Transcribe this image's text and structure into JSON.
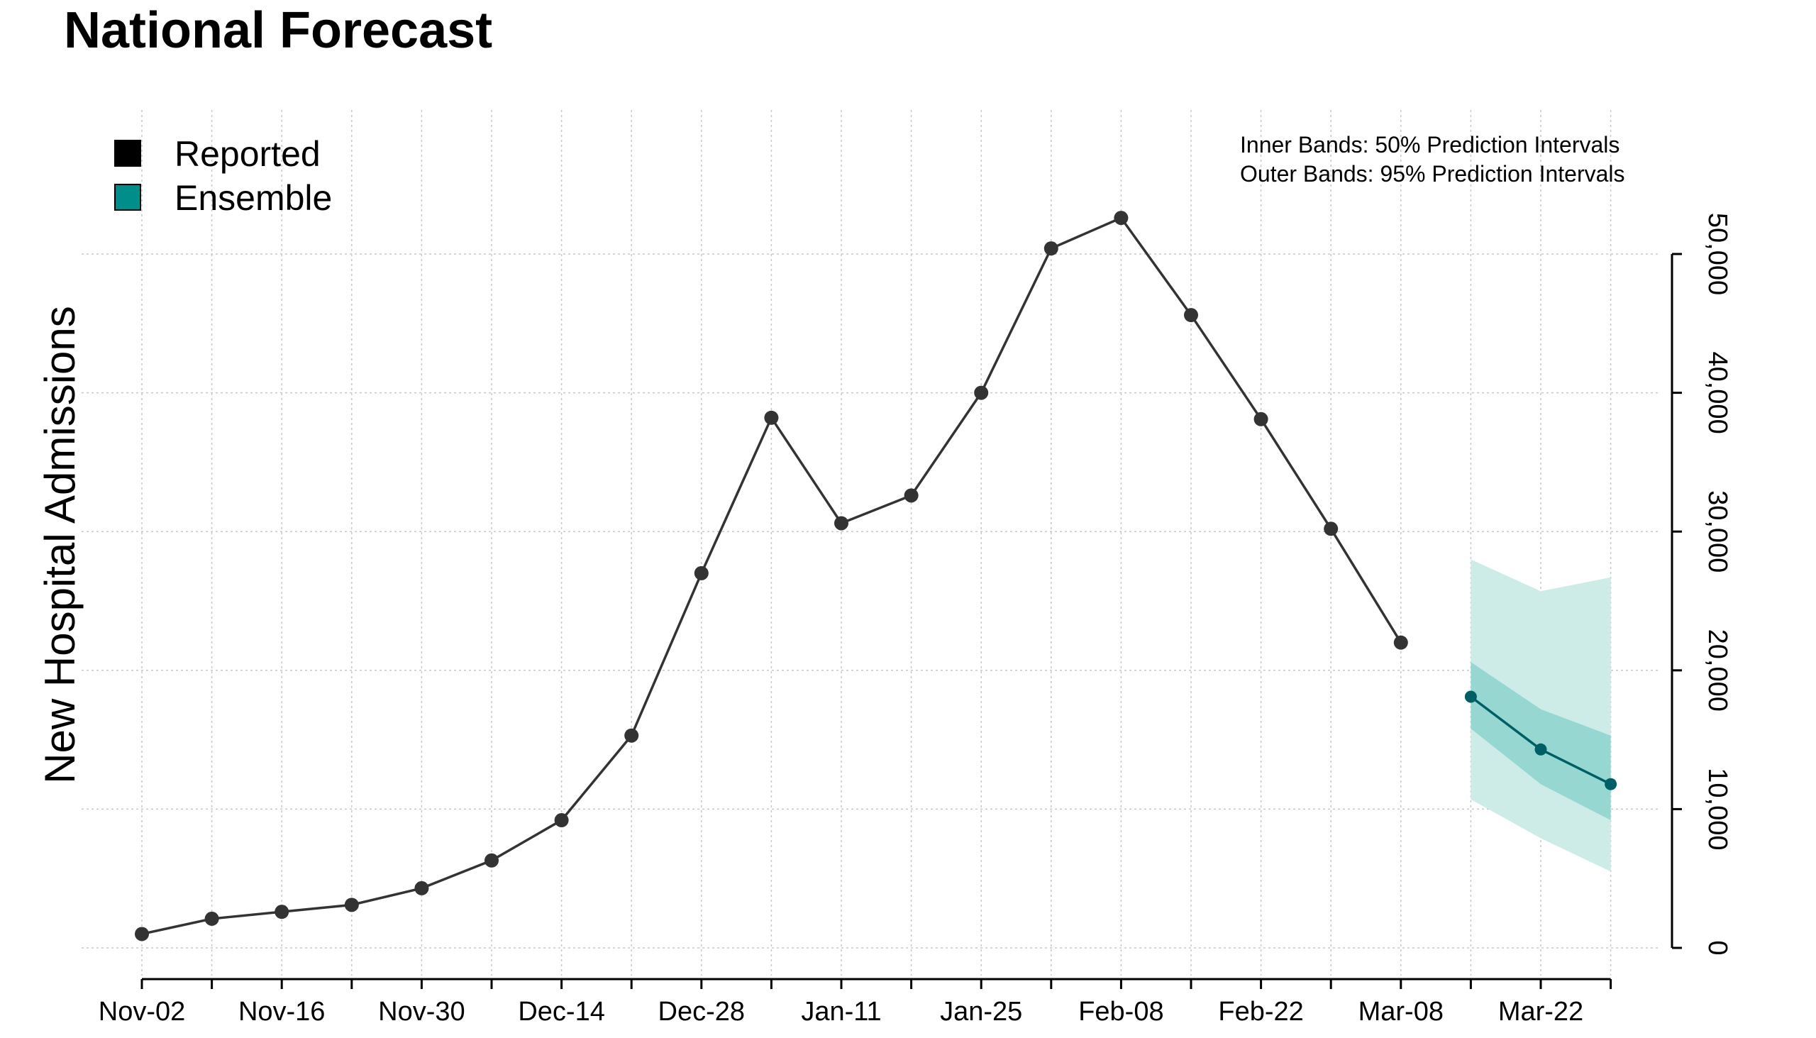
{
  "chart_data": {
    "type": "line",
    "title": "National Forecast",
    "ylabel": "New Hospital Admissions",
    "xlabel": "",
    "ylim": [
      -2000,
      56000
    ],
    "yticks": [
      0,
      10000,
      20000,
      30000,
      40000,
      50000
    ],
    "ytick_labels": [
      "0",
      "10,000",
      "20,000",
      "30,000",
      "40,000",
      "50,000"
    ],
    "grid": true,
    "legend_position": "top-left",
    "x_start": "Nov-02",
    "x": [
      "Nov-02",
      "Nov-09",
      "Nov-16",
      "Nov-23",
      "Nov-30",
      "Dec-07",
      "Dec-14",
      "Dec-21",
      "Dec-28",
      "Jan-04",
      "Jan-11",
      "Jan-18",
      "Jan-25",
      "Feb-01",
      "Feb-08",
      "Feb-15",
      "Feb-22",
      "Mar-01",
      "Mar-08",
      "Mar-15",
      "Mar-22",
      "Mar-29"
    ],
    "x_tick_labels": [
      "Nov-02",
      "",
      "Nov-16",
      "",
      "Nov-30",
      "",
      "Dec-14",
      "",
      "Dec-28",
      "",
      "Jan-11",
      "",
      "Jan-25",
      "",
      "Feb-08",
      "",
      "Feb-22",
      "",
      "Mar-08",
      "",
      "Mar-22",
      ""
    ],
    "series": [
      {
        "name": "Reported",
        "color": "#333333",
        "x": [
          "Nov-02",
          "Nov-09",
          "Nov-16",
          "Nov-23",
          "Nov-30",
          "Dec-07",
          "Dec-14",
          "Dec-21",
          "Dec-28",
          "Jan-04",
          "Jan-11",
          "Jan-18",
          "Jan-25",
          "Feb-01",
          "Feb-08",
          "Feb-15",
          "Feb-22",
          "Mar-01",
          "Mar-08"
        ],
        "values": [
          1000,
          2100,
          2600,
          3100,
          4300,
          6300,
          9200,
          15300,
          27000,
          38200,
          30600,
          32600,
          40000,
          50400,
          52600,
          45600,
          38100,
          30200,
          22000
        ]
      },
      {
        "name": "Ensemble",
        "color": "#005f65",
        "x": [
          "Mar-15",
          "Mar-22",
          "Mar-29"
        ],
        "values": [
          18100,
          14300,
          11800
        ],
        "pi50_lower": [
          15800,
          11800,
          9200
        ],
        "pi50_upper": [
          20600,
          17200,
          15300
        ],
        "pi95_lower": [
          10700,
          7900,
          5500
        ],
        "pi95_upper": [
          28000,
          25700,
          26700
        ]
      }
    ],
    "legend": [
      {
        "label": "Reported",
        "color": "#000000"
      },
      {
        "label": "Ensemble",
        "color": "#008e8a"
      }
    ],
    "annotations": [
      "Inner Bands: 50% Prediction Intervals",
      "Outer Bands: 95% Prediction Intervals"
    ],
    "colors": {
      "inner_band": "#96d7d1",
      "outer_band": "#cdece8",
      "grid": "#c8c8c8"
    }
  }
}
